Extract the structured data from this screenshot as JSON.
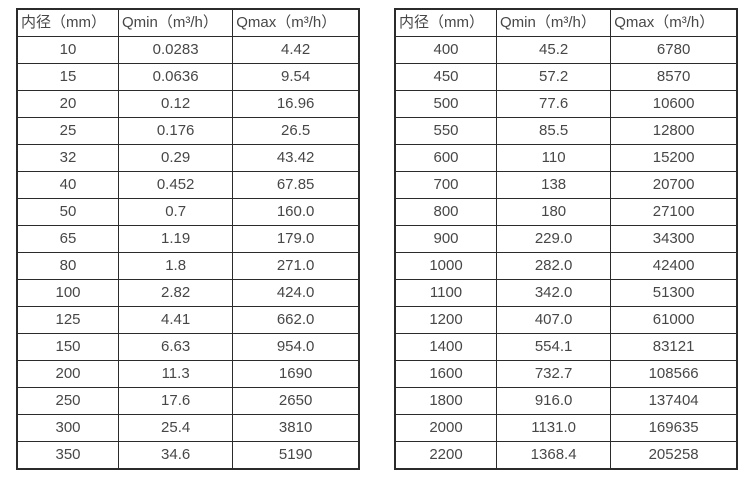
{
  "colors": {
    "border": "#2b2b2b",
    "text": "#474747",
    "background": "#ffffff"
  },
  "chart_data": [
    {
      "type": "table",
      "title": "",
      "columns": [
        "内径（mm）",
        "Qmin（m³/h）",
        "Qmax（m³/h）"
      ],
      "rows": [
        [
          "10",
          "0.0283",
          "4.42"
        ],
        [
          "15",
          "0.0636",
          "9.54"
        ],
        [
          "20",
          "0.12",
          "16.96"
        ],
        [
          "25",
          "0.176",
          "26.5"
        ],
        [
          "32",
          "0.29",
          "43.42"
        ],
        [
          "40",
          "0.452",
          "67.85"
        ],
        [
          "50",
          "0.7",
          "160.0"
        ],
        [
          "65",
          "1.19",
          "179.0"
        ],
        [
          "80",
          "1.8",
          "271.0"
        ],
        [
          "100",
          "2.82",
          "424.0"
        ],
        [
          "125",
          "4.41",
          "662.0"
        ],
        [
          "150",
          "6.63",
          "954.0"
        ],
        [
          "200",
          "11.3",
          "1690"
        ],
        [
          "250",
          "17.6",
          "2650"
        ],
        [
          "300",
          "25.4",
          "3810"
        ],
        [
          "350",
          "34.6",
          "5190"
        ]
      ]
    },
    {
      "type": "table",
      "title": "",
      "columns": [
        "内径（mm）",
        "Qmin（m³/h）",
        "Qmax（m³/h）"
      ],
      "rows": [
        [
          "400",
          "45.2",
          "6780"
        ],
        [
          "450",
          "57.2",
          "8570"
        ],
        [
          "500",
          "77.6",
          "10600"
        ],
        [
          "550",
          "85.5",
          "12800"
        ],
        [
          "600",
          "110",
          "15200"
        ],
        [
          "700",
          "138",
          "20700"
        ],
        [
          "800",
          "180",
          "27100"
        ],
        [
          "900",
          "229.0",
          "34300"
        ],
        [
          "1000",
          "282.0",
          "42400"
        ],
        [
          "1100",
          "342.0",
          "51300"
        ],
        [
          "1200",
          "407.0",
          "61000"
        ],
        [
          "1400",
          "554.1",
          "83121"
        ],
        [
          "1600",
          "732.7",
          "108566"
        ],
        [
          "1800",
          "916.0",
          "137404"
        ],
        [
          "2000",
          "1131.0",
          "169635"
        ],
        [
          "2200",
          "1368.4",
          "205258"
        ]
      ]
    }
  ]
}
